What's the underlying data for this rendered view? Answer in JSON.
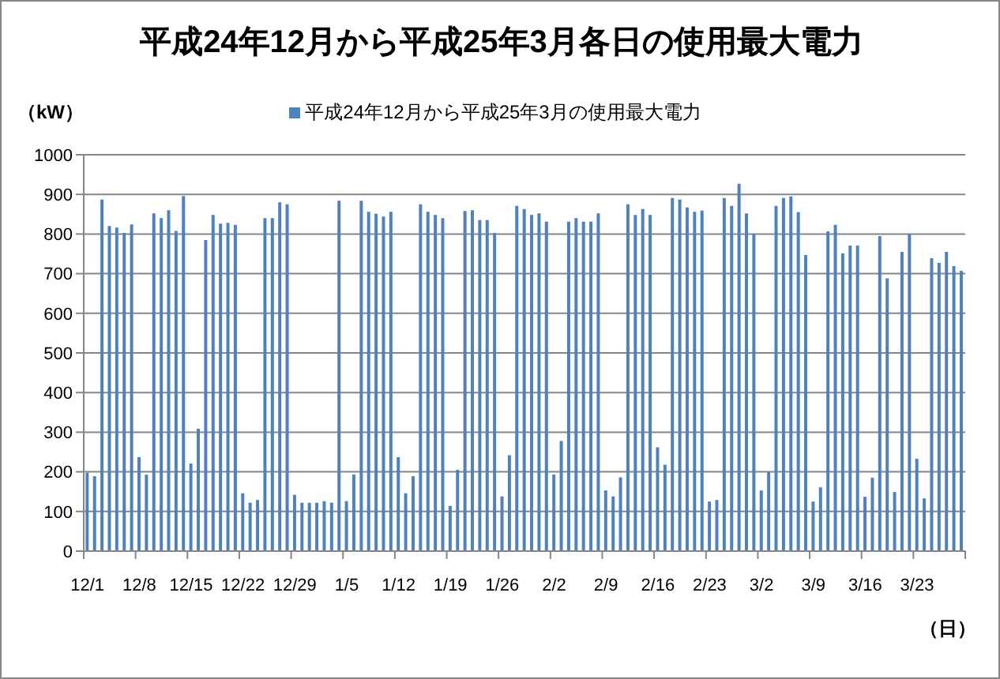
{
  "chart_data": {
    "type": "bar",
    "title": "平成24年12月から平成25年3月各日の使用最大電力",
    "xlabel": "（日）",
    "ylabel": "（kW）",
    "categories": [
      "12/1",
      null,
      null,
      null,
      null,
      null,
      null,
      "12/8",
      null,
      null,
      null,
      null,
      null,
      null,
      "12/15",
      null,
      null,
      null,
      null,
      null,
      null,
      "12/22",
      null,
      null,
      null,
      null,
      null,
      null,
      "12/29",
      null,
      null,
      null,
      null,
      null,
      null,
      "1/5",
      null,
      null,
      null,
      null,
      null,
      null,
      "1/12",
      null,
      null,
      null,
      null,
      null,
      null,
      "1/19",
      null,
      null,
      null,
      null,
      null,
      null,
      "1/26",
      null,
      null,
      null,
      null,
      null,
      null,
      "2/2",
      null,
      null,
      null,
      null,
      null,
      null,
      "2/9",
      null,
      null,
      null,
      null,
      null,
      null,
      "2/16",
      null,
      null,
      null,
      null,
      null,
      null,
      "2/23",
      null,
      null,
      null,
      null,
      null,
      null,
      "3/2",
      null,
      null,
      null,
      null,
      null,
      null,
      "3/9",
      null,
      null,
      null,
      null,
      null,
      null,
      "3/16",
      null,
      null,
      null,
      null,
      null,
      null,
      "3/23",
      null,
      null,
      null,
      null,
      null,
      null
    ],
    "series": [
      {
        "name": "平成24年12月から平成25年3月の使用最大電力",
        "color": "#4f81bd",
        "values": [
          198,
          189,
          887,
          820,
          816,
          803,
          824,
          237,
          193,
          852,
          840,
          860,
          808,
          896,
          221,
          309,
          785,
          848,
          826,
          828,
          823,
          146,
          122,
          129,
          840,
          840,
          880,
          875,
          142,
          122,
          122,
          122,
          126,
          122,
          884,
          126,
          193,
          884,
          856,
          851,
          844,
          856,
          237,
          146,
          189,
          875,
          856,
          848,
          840,
          114,
          205,
          858,
          860,
          835,
          835,
          803,
          138,
          242,
          871,
          863,
          848,
          852,
          831,
          193,
          278,
          831,
          840,
          831,
          831,
          852,
          153,
          138,
          186,
          875,
          848,
          863,
          848,
          262,
          218,
          891,
          887,
          867,
          856,
          859,
          125,
          129,
          891,
          871,
          927,
          852,
          801,
          153,
          199,
          871,
          891,
          895,
          855,
          747,
          125,
          161,
          807,
          823,
          751,
          771,
          771,
          137,
          185,
          795,
          688,
          149,
          755,
          801,
          233,
          133,
          739,
          727,
          755,
          719,
          707
        ]
      }
    ],
    "ylim": [
      0,
      1000
    ],
    "yticks": [
      0,
      100,
      200,
      300,
      400,
      500,
      600,
      700,
      800,
      900,
      1000
    ],
    "grid": "y",
    "legend": "top"
  }
}
